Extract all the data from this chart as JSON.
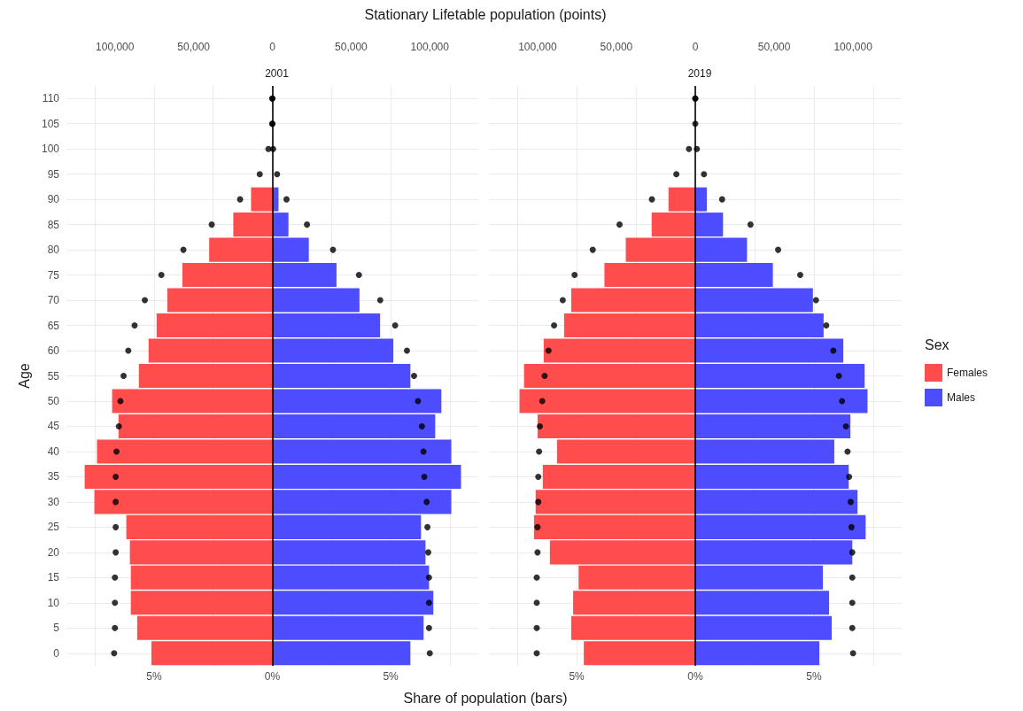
{
  "chart_data": [
    {
      "type": "bar",
      "orientation": "horizontal",
      "title": "2001",
      "xlabel": "Share of population (bars)",
      "x2label": "Stationary Lifetable population (points)",
      "ylabel": "Age",
      "categories": [
        "110",
        "105",
        "100",
        "95",
        "90",
        "85",
        "80",
        "75",
        "70",
        "65",
        "60",
        "55",
        "50",
        "45",
        "40",
        "35",
        "30",
        "25",
        "20",
        "15",
        "10",
        "5",
        "0"
      ],
      "series": [
        {
          "color": "#ff4d4d",
          "values": [
            null,
            null,
            null,
            null,
            -0.9,
            -1.65,
            -2.67,
            -3.8,
            -4.44,
            -4.89,
            -5.23,
            -5.64,
            -6.77,
            -6.5,
            -7.41,
            -7.93,
            -7.52,
            -6.17,
            -6.02,
            -5.98,
            -5.98,
            -5.71,
            -5.11
          ]
        },
        {
          "color": "#4d4dff",
          "values": [
            null,
            null,
            null,
            null,
            0.26,
            0.68,
            1.54,
            2.71,
            3.68,
            4.55,
            5.11,
            5.83,
            7.14,
            6.88,
            7.56,
            7.97,
            7.56,
            6.28,
            6.47,
            6.62,
            6.8,
            6.39,
            5.83
          ]
        },
        {
          "type": "scatter",
          "axis": "x2",
          "color": "#000000",
          "values": [
            0,
            0,
            -2500,
            -8000,
            -20500,
            -38500,
            -56500,
            -70500,
            -81000,
            -87500,
            -91500,
            -94500,
            -96500,
            -97500,
            -99000,
            -99500,
            -99500,
            -99500,
            -99500,
            -100000,
            -100000,
            -100000,
            -100500
          ]
        },
        {
          "type": "scatter",
          "axis": "x2",
          "color": "#000000",
          "values": [
            0,
            0,
            500,
            3000,
            9000,
            22000,
            38500,
            55000,
            68500,
            78000,
            85500,
            90000,
            92500,
            95000,
            96000,
            96500,
            98000,
            98500,
            99000,
            99500,
            99500,
            99500,
            100000
          ]
        }
      ],
      "xlim": [
        -8.7,
        8.7
      ],
      "xticks": [
        {
          "value": -7.5,
          "label": null
        },
        {
          "value": -5,
          "label": "5%"
        },
        {
          "value": -2.5,
          "label": null
        },
        {
          "value": 0,
          "label": "0%"
        },
        {
          "value": 2.5,
          "label": null
        },
        {
          "value": 5,
          "label": "5%"
        },
        {
          "value": 7.5,
          "label": null
        }
      ],
      "x2lim": [
        -130800,
        130800
      ],
      "x2ticks": [
        {
          "value": -100000,
          "label": "100,000"
        },
        {
          "value": -50000,
          "label": "50,000"
        },
        0,
        {
          "value": 50000,
          "label": "50,000"
        },
        {
          "value": 100000,
          "label": "100,000"
        }
      ],
      "ref_lines": [
        {
          "axis": "x",
          "value": 0,
          "color": "#000000"
        }
      ],
      "stacked": true,
      "grid": true,
      "marker": "circle"
    },
    {
      "type": "bar",
      "orientation": "horizontal",
      "title": "2019",
      "legend_title": "Sex",
      "legend": "right",
      "tick_labels": "x",
      "categories": [
        "110",
        "105",
        "100",
        "95",
        "90",
        "85",
        "80",
        "75",
        "70",
        "65",
        "60",
        "55",
        "50",
        "45",
        "40",
        "35",
        "30",
        "25",
        "20",
        "15",
        "10",
        "5",
        "0"
      ],
      "series": [
        {
          "name": "Females",
          "color": "#ff4d4d",
          "values": [
            null,
            null,
            null,
            null,
            -1.13,
            -1.84,
            -2.93,
            -3.83,
            -5.23,
            -5.53,
            -6.39,
            -7.22,
            -7.41,
            -6.65,
            -5.83,
            -6.43,
            -6.73,
            -6.8,
            -6.13,
            -4.92,
            -5.15,
            -5.23,
            -4.7
          ]
        },
        {
          "name": "Males",
          "color": "#4d4dff",
          "values": [
            null,
            null,
            null,
            null,
            0.49,
            1.17,
            2.18,
            3.27,
            4.96,
            5.41,
            6.24,
            7.14,
            7.26,
            6.54,
            5.86,
            6.47,
            6.84,
            7.18,
            6.62,
            5.38,
            5.64,
            5.75,
            5.23
          ]
        },
        {
          "type": "scatter",
          "axis": "x2",
          "color": "#000000",
          "values": [
            0,
            null,
            -4000,
            -12000,
            -27500,
            -48000,
            -65000,
            -76500,
            -84000,
            -89500,
            -93000,
            -95500,
            -97000,
            -98500,
            -99000,
            -99500,
            -99500,
            -100000,
            -100000,
            -100500,
            -100500,
            -100500,
            -100500
          ]
        },
        {
          "type": "scatter",
          "axis": "x2",
          "color": "#000000",
          "values": [
            0,
            0,
            1000,
            5500,
            17000,
            35000,
            52500,
            66500,
            76500,
            83000,
            87500,
            91000,
            93000,
            95500,
            96500,
            97500,
            98500,
            99000,
            99500,
            99500,
            99500,
            99500,
            100000
          ]
        }
      ],
      "xlim": [
        -8.7,
        8.7
      ],
      "xticks": [
        {
          "value": -7.5,
          "label": null
        },
        {
          "value": -5,
          "label": "5%"
        },
        {
          "value": -2.5,
          "label": null
        },
        {
          "value": 0,
          "label": "0%"
        },
        {
          "value": 2.5,
          "label": null
        },
        {
          "value": 5,
          "label": "5%"
        },
        {
          "value": 7.5,
          "label": null
        }
      ],
      "x2lim": [
        -130800,
        130800
      ],
      "x2ticks": [
        {
          "value": -100000,
          "label": "100,000"
        },
        {
          "value": -50000,
          "label": "50,000"
        },
        0,
        {
          "value": 50000,
          "label": "50,000"
        },
        {
          "value": 100000,
          "label": "100,000"
        }
      ],
      "ref_lines": [
        {
          "axis": "x",
          "value": 0,
          "color": "#000000"
        }
      ],
      "stacked": true,
      "grid": true,
      "marker": "circle"
    }
  ]
}
